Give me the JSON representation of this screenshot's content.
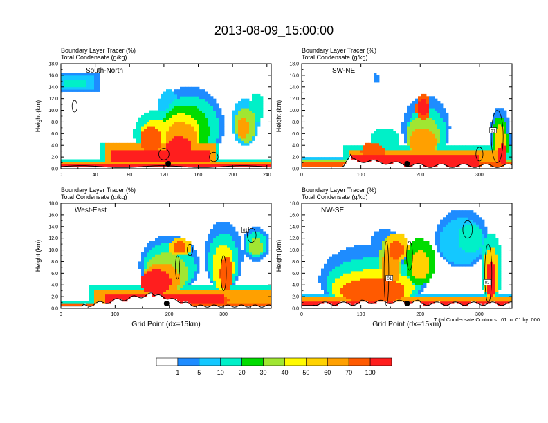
{
  "figure": {
    "title": "2013-08-09_15:00:00",
    "contour_note": "Total Condensate Contours: .01 to .01 by .000"
  },
  "colorbar": {
    "colors": [
      "#ffffff",
      "#1e8cff",
      "#14c8ff",
      "#00f0c8",
      "#00dc00",
      "#a0e632",
      "#fffa00",
      "#ffd200",
      "#ffa000",
      "#ff5a00",
      "#ff1e1e"
    ],
    "labels": [
      "1",
      "5",
      "10",
      "20",
      "30",
      "40",
      "50",
      "60",
      "70",
      "100"
    ]
  },
  "chart_data": [
    {
      "type": "heatmap",
      "title": "South-North",
      "subtitle1": "Boundary Layer Tracer    (%)",
      "subtitle2": "Total Condensate    (g/kg)",
      "xlabel": "",
      "ylabel": "Height (km)",
      "xlim": [
        0,
        245
      ],
      "ylim": [
        0,
        18
      ],
      "xticks": [
        0,
        40,
        80,
        120,
        160,
        200,
        240
      ],
      "xtick_labels": [
        "0",
        "40",
        "80",
        "120",
        "160",
        "200",
        "240"
      ],
      "yticks": [
        0,
        2,
        4,
        6,
        8,
        10,
        12,
        14,
        16,
        18
      ],
      "ytick_labels": [
        "0.0",
        "2.0",
        "4.0",
        "6.0",
        "8.0",
        "10.0",
        "12.0",
        "14.0",
        "16.0",
        "18.0"
      ],
      "marker_x": 125,
      "annotations": []
    },
    {
      "type": "heatmap",
      "title": "SW-NE",
      "subtitle1": "Boundary Layer Tracer    (%)",
      "subtitle2": "Total Condensate    (g/kg)",
      "xlabel": "",
      "ylabel": "Height (km)",
      "xlim": [
        0,
        355
      ],
      "ylim": [
        0,
        18
      ],
      "xticks": [
        0,
        100,
        200,
        300
      ],
      "xtick_labels": [
        "0",
        "100",
        "200",
        "300"
      ],
      "yticks": [
        0,
        2,
        4,
        6,
        8,
        10,
        12,
        14,
        16,
        18
      ],
      "ytick_labels": [
        "0.0",
        "2.0",
        "4.0",
        "6.0",
        "8.0",
        "10.0",
        "12.0",
        "14.0",
        "16.0",
        "18.0"
      ],
      "marker_x": 178,
      "annotations": [
        "01"
      ]
    },
    {
      "type": "heatmap",
      "title": "West-East",
      "subtitle1": "Boundary Layer Tracer    (%)",
      "subtitle2": "Total Condensate    (g/kg)",
      "xlabel": "Grid Point (dx=15km)",
      "ylabel": "Height (km)",
      "xlim": [
        0,
        388
      ],
      "ylim": [
        0,
        18
      ],
      "xticks": [
        0,
        100,
        200,
        300
      ],
      "xtick_labels": [
        "0",
        "100",
        "200",
        "300"
      ],
      "yticks": [
        0,
        2,
        4,
        6,
        8,
        10,
        12,
        14,
        16,
        18
      ],
      "ytick_labels": [
        "0.0",
        "2.0",
        "4.0",
        "6.0",
        "8.0",
        "10.0",
        "12.0",
        "14.0",
        "16.0",
        "18.0"
      ],
      "marker_x": 195,
      "annotations": [
        "01"
      ]
    },
    {
      "type": "heatmap",
      "title": "NW-SE",
      "subtitle1": "Boundary Layer Tracer    (%)",
      "subtitle2": "Total Condensate    (g/kg)",
      "xlabel": "Grid Point (dx=15km)",
      "ylabel": "Height (km)",
      "xlim": [
        0,
        355
      ],
      "ylim": [
        0,
        18
      ],
      "xticks": [
        0,
        100,
        200,
        300
      ],
      "xtick_labels": [
        "0",
        "100",
        "200",
        "300"
      ],
      "yticks": [
        0,
        2,
        4,
        6,
        8,
        10,
        12,
        14,
        16,
        18
      ],
      "ytick_labels": [
        "0.0",
        "2.0",
        "4.0",
        "6.0",
        "8.0",
        "10.0",
        "12.0",
        "14.0",
        "16.0",
        "18.0"
      ],
      "marker_x": 178,
      "annotations": [
        "01",
        "01"
      ]
    }
  ]
}
